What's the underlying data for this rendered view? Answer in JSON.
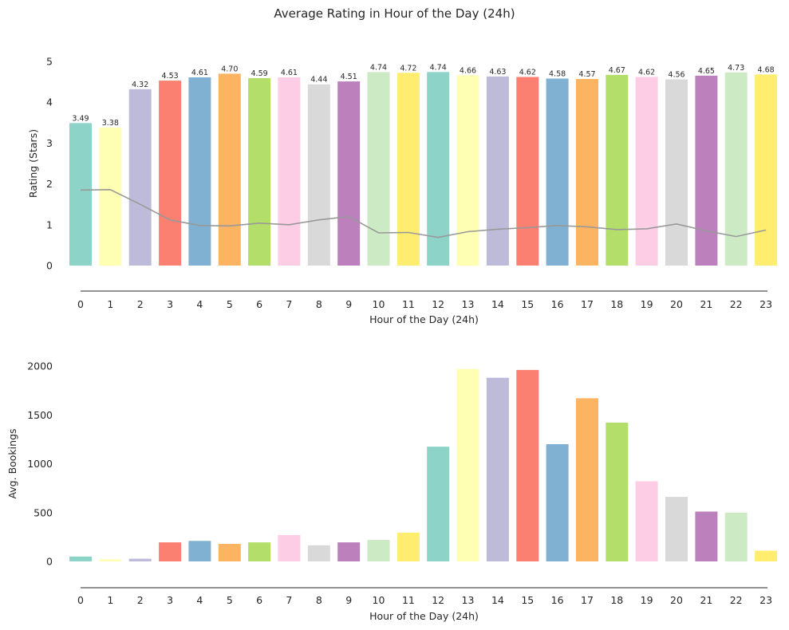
{
  "figure": {
    "title": "Average Rating in Hour of the Day (24h)"
  },
  "palette": [
    "#8dd3c7",
    "#ffffb3",
    "#bebada",
    "#fb8072",
    "#80b1d3",
    "#fdb462",
    "#b3de69",
    "#fccde5",
    "#d9d9d9",
    "#bc80bd",
    "#ccebc5",
    "#ffed6f"
  ],
  "chart_data": [
    {
      "type": "bar",
      "title": "",
      "xlabel": "Hour of the Day (24h)",
      "ylabel": "Rating (Stars)",
      "ylim": [
        0,
        5
      ],
      "yticks": [
        0,
        1,
        2,
        3,
        4,
        5
      ],
      "categories": [
        "0",
        "1",
        "2",
        "3",
        "4",
        "5",
        "6",
        "7",
        "8",
        "9",
        "10",
        "11",
        "12",
        "13",
        "14",
        "15",
        "16",
        "17",
        "18",
        "19",
        "20",
        "21",
        "22",
        "23"
      ],
      "values": [
        3.49,
        3.38,
        4.32,
        4.53,
        4.61,
        4.7,
        4.59,
        4.61,
        4.44,
        4.51,
        4.74,
        4.72,
        4.74,
        4.66,
        4.63,
        4.62,
        4.58,
        4.57,
        4.67,
        4.62,
        4.56,
        4.65,
        4.73,
        4.68
      ],
      "value_labels": [
        "3.49",
        "3.38",
        "4.32",
        "4.53",
        "4.61",
        "4.70",
        "4.59",
        "4.61",
        "4.44",
        "4.51",
        "4.74",
        "4.72",
        "4.74",
        "4.66",
        "4.63",
        "4.62",
        "4.58",
        "4.57",
        "4.67",
        "4.62",
        "4.56",
        "4.65",
        "4.73",
        "4.68"
      ],
      "line_overlay": {
        "color": "#999999",
        "values": [
          1.85,
          1.86,
          1.5,
          1.12,
          0.98,
          0.97,
          1.04,
          1.0,
          1.12,
          1.2,
          0.8,
          0.81,
          0.69,
          0.83,
          0.89,
          0.93,
          0.98,
          0.95,
          0.88,
          0.9,
          1.02,
          0.85,
          0.71,
          0.87
        ]
      },
      "grid": false
    },
    {
      "type": "bar",
      "title": "",
      "xlabel": "Hour of the Day (24h)",
      "ylabel": "Avg. Bookings",
      "ylim": [
        0,
        2000
      ],
      "yticks": [
        0,
        500,
        1000,
        1500,
        2000
      ],
      "categories": [
        "0",
        "1",
        "2",
        "3",
        "4",
        "5",
        "6",
        "7",
        "8",
        "9",
        "10",
        "11",
        "12",
        "13",
        "14",
        "15",
        "16",
        "17",
        "18",
        "19",
        "20",
        "21",
        "22",
        "23"
      ],
      "values": [
        50,
        20,
        28,
        195,
        210,
        180,
        195,
        270,
        165,
        195,
        220,
        295,
        1175,
        1970,
        1880,
        1960,
        1200,
        1670,
        1420,
        820,
        660,
        510,
        500,
        110
      ],
      "grid": false
    }
  ]
}
